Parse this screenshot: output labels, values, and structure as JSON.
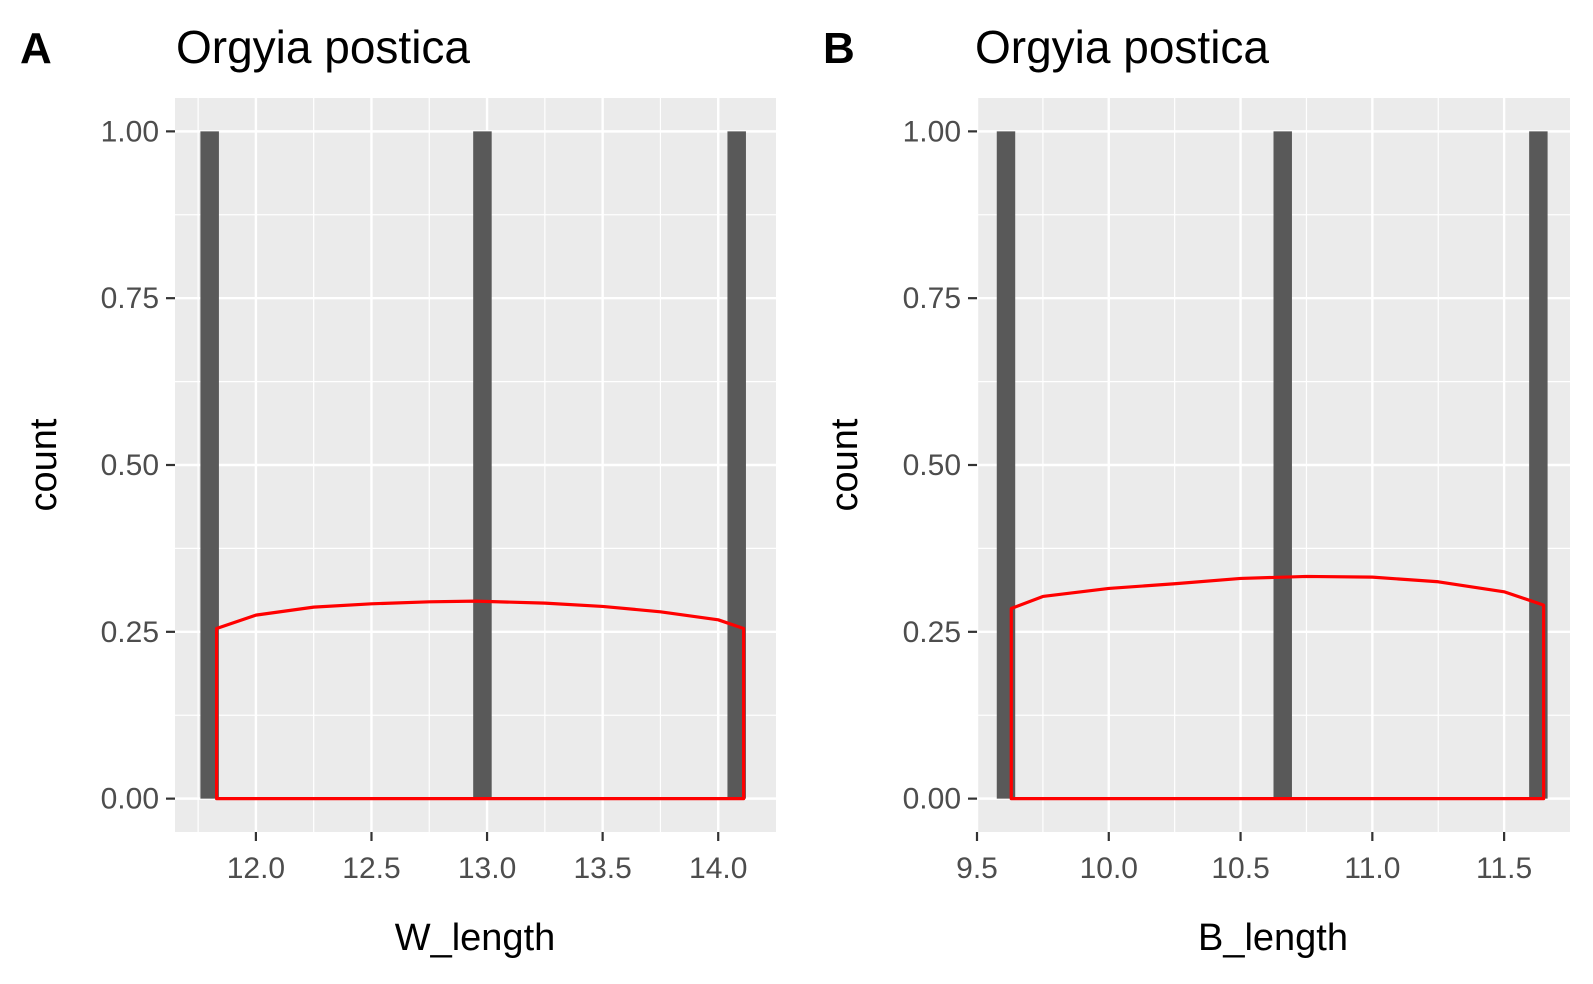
{
  "colors": {
    "panel_background": "#ebebeb",
    "grid_line": "#ffffff",
    "bar_fill": "#595959",
    "density_line": "#ff0000",
    "tick_mark": "#333333",
    "tick_label": "#4d4d4d"
  },
  "chart_data": [
    {
      "panel_letter": "A",
      "type": "bar",
      "overlay": "density",
      "title": "Orgyia postica",
      "xlabel": "W_length",
      "ylabel": "count",
      "xlim": [
        11.65,
        14.25
      ],
      "ylim": [
        -0.05,
        1.05
      ],
      "x_ticks": [
        12.0,
        12.5,
        13.0,
        13.5,
        14.0
      ],
      "x_tick_labels": [
        "12.0",
        "12.5",
        "13.0",
        "13.5",
        "14.0"
      ],
      "y_ticks": [
        0,
        0.25,
        0.5,
        0.75,
        1.0
      ],
      "y_tick_labels": [
        "0.00",
        "0.25",
        "0.50",
        "0.75",
        "1.00"
      ],
      "grid": true,
      "bars": {
        "x": [
          11.8,
          12.98,
          14.08
        ],
        "count": [
          1,
          1,
          1
        ],
        "bin_width": 0.08
      },
      "density": {
        "x": [
          11.83,
          12.0,
          12.25,
          12.5,
          12.75,
          12.95,
          13.25,
          13.5,
          13.75,
          14.0,
          14.11
        ],
        "y": [
          0.255,
          0.275,
          0.287,
          0.292,
          0.295,
          0.296,
          0.293,
          0.288,
          0.28,
          0.268,
          0.255
        ]
      }
    },
    {
      "panel_letter": "B",
      "type": "bar",
      "overlay": "density",
      "title": "Orgyia postica",
      "xlabel": "B_length",
      "ylabel": "count",
      "xlim": [
        9.5,
        11.75
      ],
      "ylim": [
        -0.05,
        1.05
      ],
      "x_ticks": [
        9.5,
        10.0,
        10.5,
        11.0,
        11.5
      ],
      "x_tick_labels": [
        "9.5",
        "10.0",
        "10.5",
        "11.0",
        "11.5"
      ],
      "y_ticks": [
        0,
        0.25,
        0.5,
        0.75,
        1.0
      ],
      "y_tick_labels": [
        "0.00",
        "0.25",
        "0.50",
        "0.75",
        "1.00"
      ],
      "grid": true,
      "bars": {
        "x": [
          9.61,
          10.66,
          11.63
        ],
        "count": [
          1,
          1,
          1
        ],
        "bin_width": 0.07
      },
      "density": {
        "x": [
          9.63,
          9.75,
          10.0,
          10.25,
          10.5,
          10.75,
          11.0,
          11.25,
          11.5,
          11.65
        ],
        "y": [
          0.285,
          0.303,
          0.315,
          0.322,
          0.33,
          0.333,
          0.332,
          0.325,
          0.31,
          0.29
        ]
      }
    }
  ]
}
